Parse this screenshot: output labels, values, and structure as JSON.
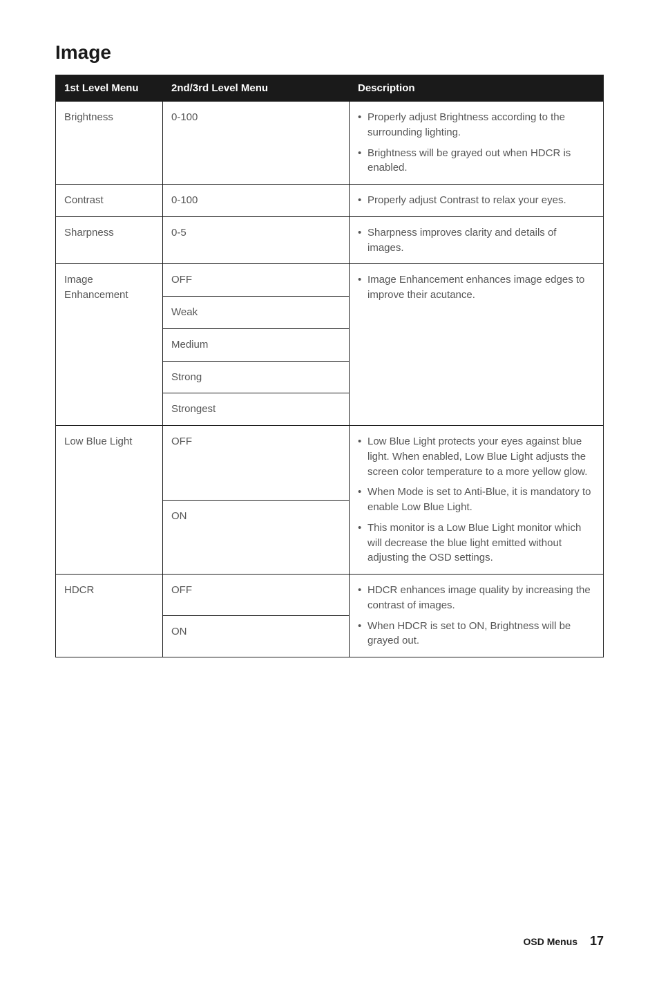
{
  "title": "Image",
  "headers": [
    "1st Level Menu",
    "2nd/3rd Level Menu",
    "Description"
  ],
  "rows": {
    "brightness": {
      "label": "Brightness",
      "value": "0-100",
      "desc": [
        "Properly adjust Brightness according to the surrounding lighting.",
        "Brightness will be grayed out when HDCR is enabled."
      ]
    },
    "contrast": {
      "label": "Contrast",
      "value": "0-100",
      "desc": [
        "Properly adjust Contrast to relax your eyes."
      ]
    },
    "sharpness": {
      "label": "Sharpness",
      "value": "0-5",
      "desc": [
        "Sharpness improves clarity and details of images."
      ]
    },
    "image_enhancement": {
      "label": "Image Enhancement",
      "options": [
        "OFF",
        "Weak",
        "Medium",
        "Strong",
        "Strongest"
      ],
      "desc": [
        "Image Enhancement enhances image edges to improve their acutance."
      ]
    },
    "low_blue_light": {
      "label": "Low Blue Light",
      "options": [
        "OFF",
        "ON"
      ],
      "desc": [
        "Low Blue Light protects your eyes against blue light. When enabled, Low Blue Light adjusts the screen color temperature to a more yellow glow.",
        "When Mode is set to Anti-Blue, it is mandatory to enable Low Blue Light.",
        "This monitor is a Low Blue Light monitor which will decrease the blue light emitted without adjusting the OSD settings."
      ]
    },
    "hdcr": {
      "label": "HDCR",
      "options": [
        "OFF",
        "ON"
      ],
      "desc": [
        "HDCR enhances image quality by increasing the contrast of images.",
        "When HDCR is set to ON, Brightness will be grayed out."
      ]
    }
  },
  "footer": {
    "section": "OSD Menus",
    "page": "17"
  }
}
